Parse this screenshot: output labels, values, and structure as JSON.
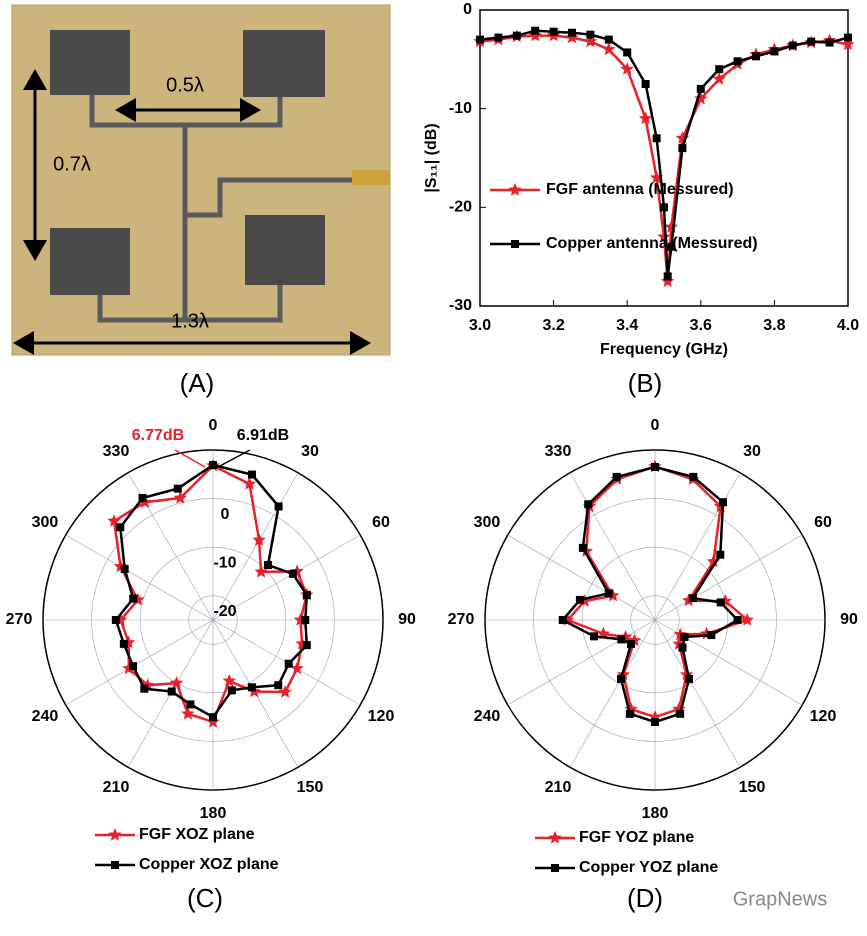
{
  "photo": {
    "labels": [
      "0.5λ",
      "0.7λ",
      "1.3λ"
    ],
    "panel": "(A)"
  },
  "chart_data": [
    {
      "type": "line",
      "panel": "(B)",
      "xlabel": "Frequency (GHz)",
      "ylabel": "|S₁₁| (dB)",
      "x": [
        3.0,
        3.05,
        3.1,
        3.15,
        3.2,
        3.25,
        3.3,
        3.35,
        3.4,
        3.45,
        3.48,
        3.5,
        3.51,
        3.52,
        3.55,
        3.6,
        3.65,
        3.7,
        3.75,
        3.8,
        3.85,
        3.9,
        3.95,
        4.0
      ],
      "series": [
        {
          "name": "FGF antenna (Messured)",
          "color": "#e8212a",
          "marker": "star",
          "values": [
            -3.2,
            -3.0,
            -2.7,
            -2.6,
            -2.6,
            -2.8,
            -3.2,
            -4.0,
            -6.0,
            -11,
            -17,
            -23,
            -27.5,
            -22,
            -13,
            -9,
            -7,
            -5.5,
            -4.5,
            -4,
            -3.6,
            -3.3,
            -3.1,
            -3.5
          ]
        },
        {
          "name": "Copper antenna (Messured)",
          "color": "#000000",
          "marker": "square",
          "values": [
            -3.0,
            -2.8,
            -2.6,
            -2.1,
            -2.2,
            -2.3,
            -2.5,
            -3.0,
            -4.3,
            -7.5,
            -13,
            -20,
            -27,
            -24,
            -14,
            -8,
            -6,
            -5.2,
            -4.7,
            -4.2,
            -3.6,
            -3.2,
            -3.3,
            -2.8
          ]
        }
      ],
      "xlim": [
        3.0,
        4.0
      ],
      "xticks": [
        {
          "value": 3,
          "label": "3.0"
        },
        3.2,
        3.4,
        3.6,
        3.8,
        {
          "value": 4,
          "label": "4.0"
        }
      ],
      "ylim": [
        -30,
        0
      ],
      "yticks": [
        -30,
        -20,
        -10,
        0
      ],
      "legend": "center-left"
    },
    {
      "type": "polar",
      "panel": "(C)",
      "theta": [
        0,
        15,
        30,
        45,
        60,
        75,
        90,
        105,
        120,
        135,
        150,
        165,
        180,
        195,
        210,
        225,
        240,
        255,
        270,
        285,
        300,
        315,
        330,
        345
      ],
      "series": [
        {
          "name": "FGF XOZ plane",
          "color": "#e8212a",
          "marker": "star",
          "values": [
            6.77,
            4,
            -6,
            -11,
            -5,
            -5,
            -7,
            -6,
            -5,
            -4,
            -8,
            -12,
            -4,
            -5,
            -10,
            -6,
            -5,
            -7,
            -6,
            -9,
            -3,
            3.8,
            3,
            1
          ]
        },
        {
          "name": "Copper XOZ plane",
          "color": "#000000",
          "marker": "square",
          "values": [
            6.91,
            6,
            2,
            -9,
            -6,
            -5,
            -6,
            -5,
            -7,
            -6,
            -9,
            -10,
            -5,
            -7,
            -8,
            -5,
            -6,
            -6,
            -5,
            -8,
            -4,
            2,
            4,
            3
          ]
        }
      ],
      "rlim": [
        -25,
        10
      ],
      "rticks": [
        -20,
        -10,
        0
      ],
      "rtick_labels": true,
      "thetaticks": [
        0,
        30,
        60,
        90,
        120,
        150,
        180,
        210,
        240,
        270,
        300,
        330
      ],
      "annotations": [
        {
          "text": "6.77dB",
          "color": "#e8212a"
        },
        {
          "text": "6.91dB",
          "color": "#000000"
        }
      ]
    },
    {
      "type": "polar",
      "panel": "(D)",
      "theta": [
        0,
        15,
        30,
        45,
        60,
        75,
        90,
        105,
        120,
        135,
        150,
        165,
        180,
        195,
        210,
        225,
        240,
        255,
        270,
        285,
        300,
        315,
        330,
        345
      ],
      "series": [
        {
          "name": "FGF YOZ plane",
          "color": "#e8212a",
          "marker": "star",
          "values": [
            6.6,
            5,
            2,
            -8,
            -17,
            -10,
            -6,
            -14,
            -19,
            -18,
            -12,
            -6,
            -5,
            -6,
            -12,
            -19,
            -18,
            -14,
            -7,
            -10,
            -15,
            -5,
            2,
            5
          ]
        },
        {
          "name": "Copper YOZ plane",
          "color": "#000000",
          "marker": "square",
          "values": [
            6.5,
            5.5,
            3,
            -6,
            -16,
            -11,
            -8,
            -13,
            -18,
            -17,
            -11,
            -5,
            -4,
            -5,
            -11,
            -18,
            -17,
            -12,
            -6,
            -9,
            -14,
            -4,
            2.5,
            5.5
          ]
        }
      ],
      "rlim": [
        -25,
        10
      ],
      "rticks": [
        -20,
        -10,
        0
      ],
      "rtick_labels": false,
      "thetaticks": [
        0,
        30,
        60,
        90,
        120,
        150,
        180,
        210,
        240,
        270,
        300,
        330
      ]
    }
  ],
  "watermark": "GrapNews"
}
